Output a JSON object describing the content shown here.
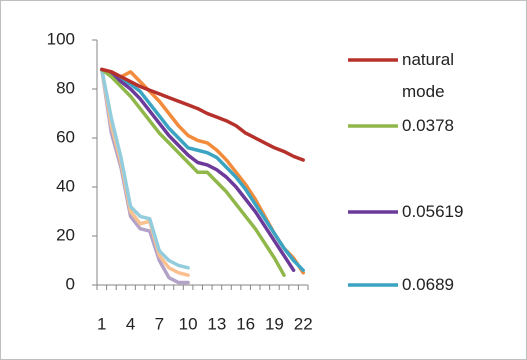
{
  "chart_data": {
    "type": "line",
    "categories": [
      1,
      null,
      null,
      4,
      null,
      null,
      7,
      null,
      null,
      10,
      null,
      null,
      13,
      null,
      null,
      16,
      null,
      null,
      19,
      null,
      null,
      22
    ],
    "ylim": [
      0,
      100
    ],
    "yticks": [
      0,
      20,
      40,
      60,
      80,
      100
    ],
    "series": [
      {
        "name": "natural mode",
        "color": "#b7312c",
        "values": [
          88,
          87,
          85,
          83,
          81,
          79.5,
          78,
          76.5,
          75,
          73.5,
          72,
          70,
          68.5,
          67,
          65,
          62,
          60,
          58,
          56,
          54.5,
          52.5,
          51
        ]
      },
      {
        "name": "0.0378",
        "color": "#8fb74a",
        "values": [
          88,
          85,
          81,
          77,
          72,
          67,
          62,
          58,
          54,
          50,
          46,
          46,
          42,
          38,
          33,
          28,
          23,
          17,
          11,
          4,
          null,
          null
        ]
      },
      {
        "name": "0.05619",
        "color": "#6b3a9a",
        "values": [
          88,
          86,
          83,
          80,
          76,
          71,
          66,
          61,
          57,
          53,
          50,
          49,
          47,
          44,
          40,
          35,
          30,
          24,
          18,
          12,
          6,
          null
        ]
      },
      {
        "name": "0.0689",
        "color": "#3ba4c2",
        "values": [
          88,
          86,
          84,
          82,
          79,
          74,
          69,
          64,
          60,
          56,
          55,
          54,
          52,
          48,
          44,
          39,
          33,
          27,
          21,
          15,
          10,
          6
        ]
      },
      {
        "color": "#f38b3c",
        "values": [
          88,
          87,
          85,
          87,
          83,
          79,
          75,
          70,
          65,
          61,
          59,
          58,
          55,
          51,
          46,
          41,
          35,
          28,
          21,
          15,
          11,
          5
        ]
      },
      {
        "color": "#93cddd",
        "values": [
          88,
          68,
          52,
          32,
          28,
          27,
          14,
          10,
          8,
          7,
          null,
          null,
          null,
          null,
          null,
          null,
          null,
          null,
          null,
          null,
          null,
          null
        ]
      },
      {
        "color": "#fac08f",
        "values": [
          88,
          65,
          50,
          30,
          25,
          26,
          12,
          7,
          5,
          4,
          null,
          null,
          null,
          null,
          null,
          null,
          null,
          null,
          null,
          null,
          null,
          null
        ]
      },
      {
        "color": "#b3a2c7",
        "values": [
          88,
          62,
          48,
          28,
          23,
          22,
          10,
          3,
          1,
          1,
          null,
          null,
          null,
          null,
          null,
          null,
          null,
          null,
          null,
          null,
          null,
          null
        ]
      }
    ]
  }
}
